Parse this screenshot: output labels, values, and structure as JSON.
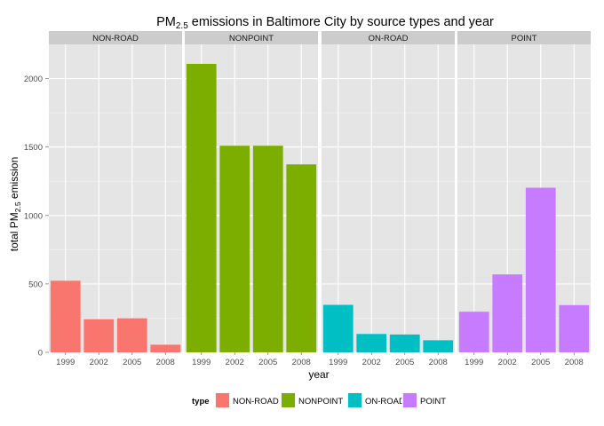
{
  "chart_data": {
    "type": "bar",
    "title_main": "PM",
    "title_sub": "2.5",
    "title_rest": " emissions in Baltimore City by source types and year",
    "xlabel": "year",
    "ylabel_main": "total PM",
    "ylabel_sub": "2.5",
    "ylabel_rest": " emission",
    "ylim": [
      0,
      2250
    ],
    "yticks": [
      0,
      500,
      1000,
      1500,
      2000
    ],
    "categories": [
      "1999",
      "2002",
      "2005",
      "2008"
    ],
    "grid": true,
    "legend_position": "bottom",
    "legend_title": "type",
    "facets": [
      {
        "name": "NON-ROAD",
        "color": "#f8766d",
        "values": [
          522.9,
          242.0,
          248.9,
          55.8
        ]
      },
      {
        "name": "NONPOINT",
        "color": "#7cae00",
        "values": [
          2107.6,
          1509.5,
          1509.5,
          1373.2
        ]
      },
      {
        "name": "ON-ROAD",
        "color": "#00bfc4",
        "values": [
          346.8,
          134.3,
          130.4,
          88.3
        ]
      },
      {
        "name": "POINT",
        "color": "#c77cff",
        "values": [
          296.8,
          569.3,
          1202.5,
          344.98
        ]
      }
    ]
  }
}
